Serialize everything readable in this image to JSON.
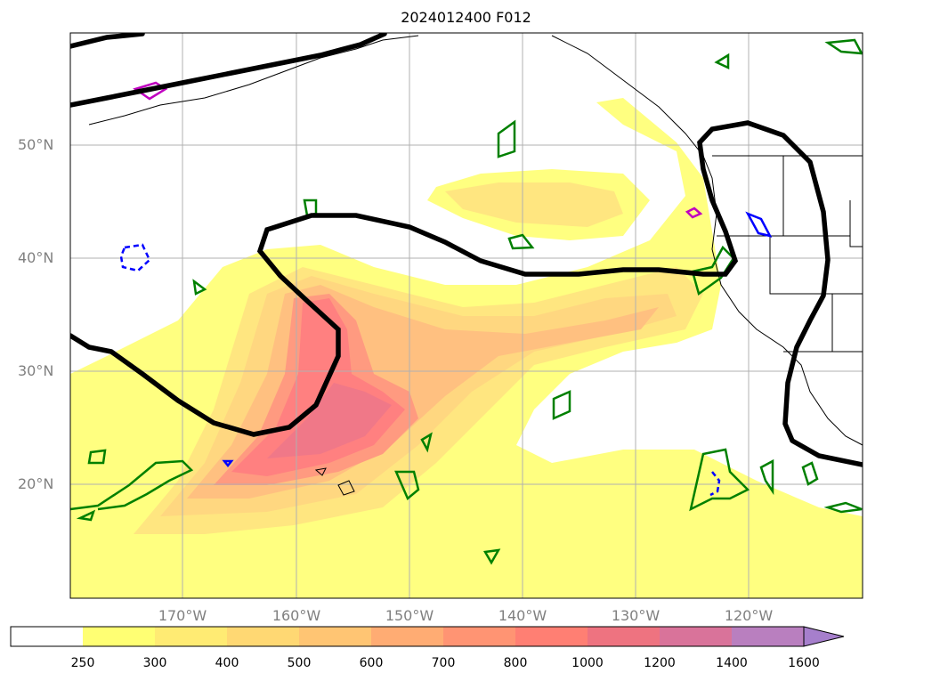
{
  "title": "2024012400 F012",
  "lat_labels": [
    "50°N",
    "40°N",
    "30°N",
    "20°N"
  ],
  "lon_labels": [
    "170°W",
    "160°W",
    "150°W",
    "140°W",
    "130°W",
    "120°W"
  ],
  "colorbar": {
    "levels": [
      "250",
      "300",
      "400",
      "500",
      "600",
      "700",
      "800",
      "1000",
      "1200",
      "1400",
      "1600"
    ],
    "colors": [
      "#ffffff",
      "#ffff73",
      "#ffeb73",
      "#ffd873",
      "#ffc573",
      "#ffac73",
      "#ff9473",
      "#ff7f73",
      "#ee7380",
      "#d9739a",
      "#b97fbf",
      "#a67fcc"
    ],
    "extend": "max"
  },
  "map": {
    "ivt_colors": {
      "c250": "#ffff80",
      "c300": "#ffe680",
      "c400": "#ffd780",
      "c500": "#ffc080",
      "c700": "#ff9a80",
      "c800": "#ff8080",
      "c1000": "#f07888"
    },
    "height_contour_color": "#000000",
    "green_contour_color": "#008000",
    "blue_contour_color": "#0000ff",
    "magenta_contour_color": "#c000c0"
  }
}
